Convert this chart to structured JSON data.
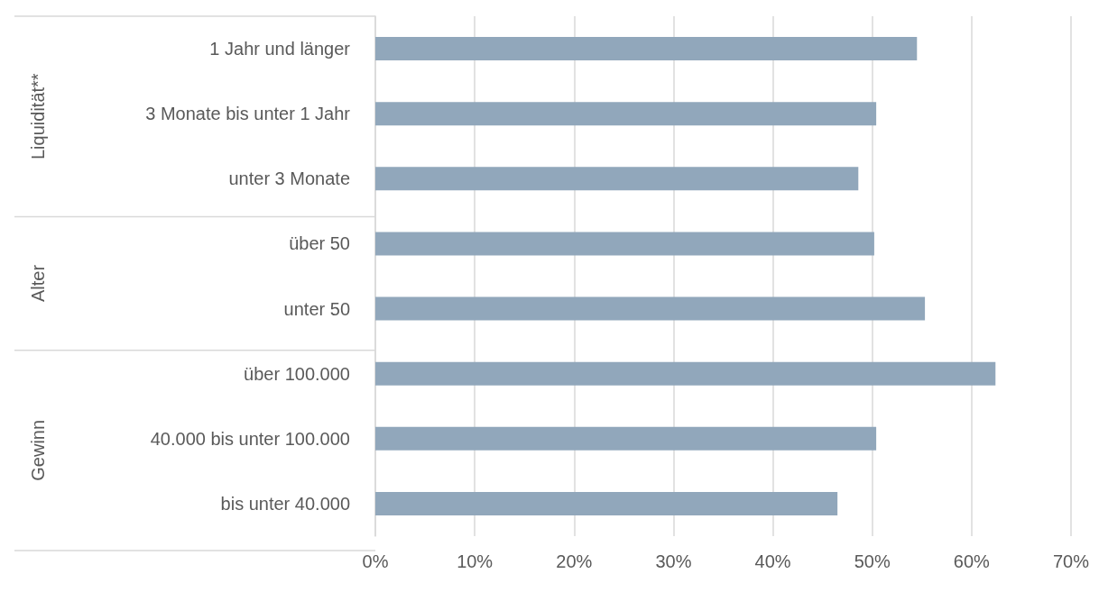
{
  "chart_data": {
    "type": "bar",
    "orientation": "horizontal",
    "categories": [
      "1 Jahr und länger",
      "3 Monate bis unter 1 Jahr",
      "unter 3 Monate",
      "über 50",
      "unter 50",
      "über 100.000",
      "40.000 bis unter 100.000",
      "bis unter 40.000"
    ],
    "values": [
      54.5,
      50.4,
      48.6,
      50.2,
      55.3,
      62.4,
      50.4,
      46.5
    ],
    "color": "#91a7bb",
    "xlim": [
      0,
      70
    ],
    "xticks": [
      {
        "value": 0,
        "label": "0%"
      },
      {
        "value": 10,
        "label": "10%"
      },
      {
        "value": 20,
        "label": "20%"
      },
      {
        "value": 30,
        "label": "30%"
      },
      {
        "value": 40,
        "label": "40%"
      },
      {
        "value": 50,
        "label": "50%"
      },
      {
        "value": 60,
        "label": "60%"
      },
      {
        "value": 70,
        "label": "70%"
      }
    ],
    "grid": "x",
    "annotations": [
      "Liquidität**",
      "Alter",
      "Gewinn"
    ]
  }
}
